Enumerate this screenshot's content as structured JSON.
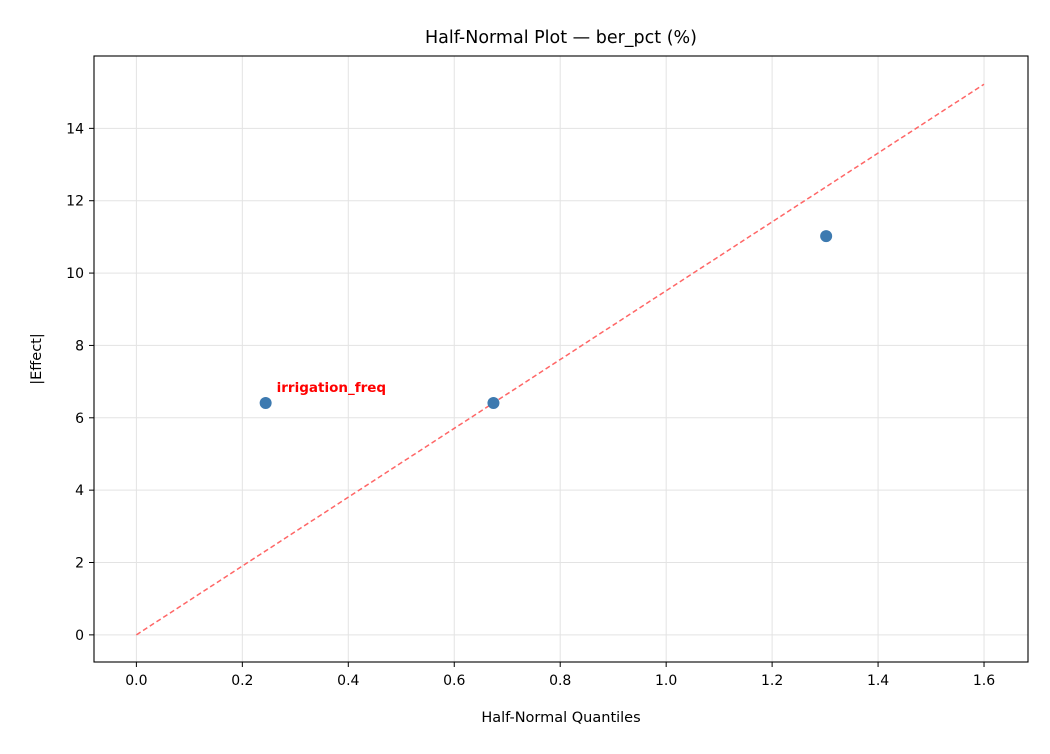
{
  "chart_data": {
    "type": "scatter",
    "title": "Half-Normal Plot — ber_pct (%)",
    "xlabel": "Half-Normal Quantiles",
    "ylabel": "|Effect|",
    "xlim": [
      -0.08,
      1.683
    ],
    "ylim": [
      -0.75,
      16.0
    ],
    "xticks": [
      "0.0",
      "0.2",
      "0.4",
      "0.6",
      "0.8",
      "1.0",
      "1.2",
      "1.4",
      "1.6"
    ],
    "yticks": [
      "0",
      "2",
      "4",
      "6",
      "8",
      "10",
      "12",
      "14"
    ],
    "grid": true,
    "points": [
      {
        "x": 0.244,
        "y": 6.41
      },
      {
        "x": 0.674,
        "y": 6.41
      },
      {
        "x": 1.302,
        "y": 11.02
      }
    ],
    "reference_line": {
      "x": [
        0,
        1.6
      ],
      "y": [
        0,
        15.22
      ]
    },
    "annotations": [
      {
        "text": "irrigation_freq",
        "x": 0.244,
        "y": 6.41
      }
    ],
    "colors": {
      "points": "#3d7ab0",
      "reference_line": "#ff6666",
      "annotation": "#ff0000"
    }
  }
}
